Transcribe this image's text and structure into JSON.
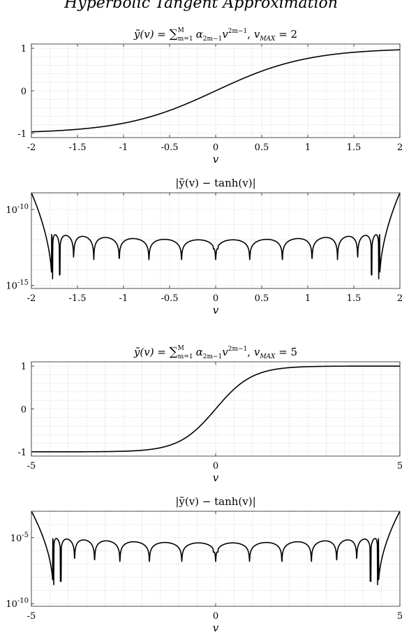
{
  "figure_title": "Hyperbolic Tangent Approximation",
  "chart_data": [
    {
      "type": "line",
      "title": "ỹ(v) = ∑ α2m−1 v^(2m−1),   vMAX = 2",
      "title_parts": {
        "lhs": "ỹ(v) = ",
        "sum": "∑",
        "sum_sup": "M",
        "sum_sub": "m=1",
        "alpha": "α",
        "alpha_sub": "2m−1",
        "var": "v",
        "var_sup": "2m−1",
        "sep": ",",
        "vmax": "v",
        "vmax_sub": "MAX",
        "vmax_eq": " = 2"
      },
      "xlabel": "v",
      "ylabel": "",
      "xlim": [
        -2,
        2
      ],
      "ylim": [
        -1.1,
        1.1
      ],
      "yscale": "linear",
      "xticks": [
        -2,
        -1.5,
        -1,
        -0.5,
        0,
        0.5,
        1,
        1.5,
        2
      ],
      "xtick_labels": [
        "-2",
        "-1.5",
        "-1",
        "-0.5",
        "0",
        "0.5",
        "1",
        "1.5",
        "2"
      ],
      "yticks": [
        -1,
        0,
        1
      ],
      "ytick_labels": [
        "-1",
        "0",
        "1"
      ],
      "grid": true,
      "series": [
        {
          "function": "tanh",
          "color": "#000000"
        }
      ]
    },
    {
      "type": "line",
      "title": "|ỹ(v) − tanh(v)|",
      "xlabel": "v",
      "ylabel": "",
      "xlim": [
        -2,
        2
      ],
      "ylim_exp": [
        -15.2,
        -8.9
      ],
      "yscale": "log",
      "xticks": [
        -2,
        -1.5,
        -1,
        -0.5,
        0,
        0.5,
        1,
        1.5,
        2
      ],
      "xtick_labels": [
        "-2",
        "-1.5",
        "-1",
        "-0.5",
        "0",
        "0.5",
        "1",
        "1.5",
        "2"
      ],
      "ytick_exponents": [
        -10,
        -15
      ],
      "ytick_base": "10",
      "grid": true,
      "series": [
        {
          "function": "error",
          "color": "#000000",
          "zeros": 30,
          "zero_span": 1.78,
          "ripple_log10": -12.0,
          "dip_log10": -13.3,
          "edge_log10": -8.9,
          "deepest_dip_log10": -14.6,
          "center_dip_log10": -12.6
        }
      ]
    },
    {
      "type": "line",
      "title": "ỹ(v) = ∑ α2m−1 v^(2m−1),   vMAX = 5",
      "title_parts": {
        "lhs": "ỹ(v) = ",
        "sum": "∑",
        "sum_sup": "M",
        "sum_sub": "m=1",
        "alpha": "α",
        "alpha_sub": "2m−1",
        "var": "v",
        "var_sup": "2m−1",
        "sep": ",",
        "vmax": "v",
        "vmax_sub": "MAX",
        "vmax_eq": " = 5"
      },
      "xlabel": "v",
      "ylabel": "",
      "xlim": [
        -5,
        5
      ],
      "ylim": [
        -1.1,
        1.1
      ],
      "yscale": "linear",
      "xticks": [
        -5,
        0,
        5
      ],
      "xtick_labels": [
        "-5",
        "0",
        "5"
      ],
      "minor_xticks": [
        -4,
        -3,
        -2,
        -1,
        1,
        2,
        3,
        4
      ],
      "yticks": [
        -1,
        0,
        1
      ],
      "ytick_labels": [
        "-1",
        "0",
        "1"
      ],
      "grid": true,
      "series": [
        {
          "function": "tanh",
          "color": "#000000"
        }
      ]
    },
    {
      "type": "line",
      "title": "|ỹ(v) − tanh(v)|",
      "xlabel": "v",
      "ylabel": "",
      "xlim": [
        -5,
        5
      ],
      "ylim_exp": [
        -10.2,
        -3.0
      ],
      "yscale": "log",
      "xticks": [
        -5,
        0,
        5
      ],
      "xtick_labels": [
        "-5",
        "0",
        "5"
      ],
      "minor_xticks": [
        -4,
        -3,
        -2,
        -1,
        1,
        2,
        3,
        4
      ],
      "ytick_exponents": [
        -5,
        -10
      ],
      "ytick_base": "10",
      "grid": true,
      "series": [
        {
          "function": "error",
          "color": "#000000",
          "zeros": 30,
          "zero_span": 4.42,
          "ripple_log10": -5.4,
          "dip_log10": -6.8,
          "edge_log10": -3.0,
          "deepest_dip_log10": -8.6,
          "center_dip_log10": -6.1
        }
      ]
    }
  ]
}
